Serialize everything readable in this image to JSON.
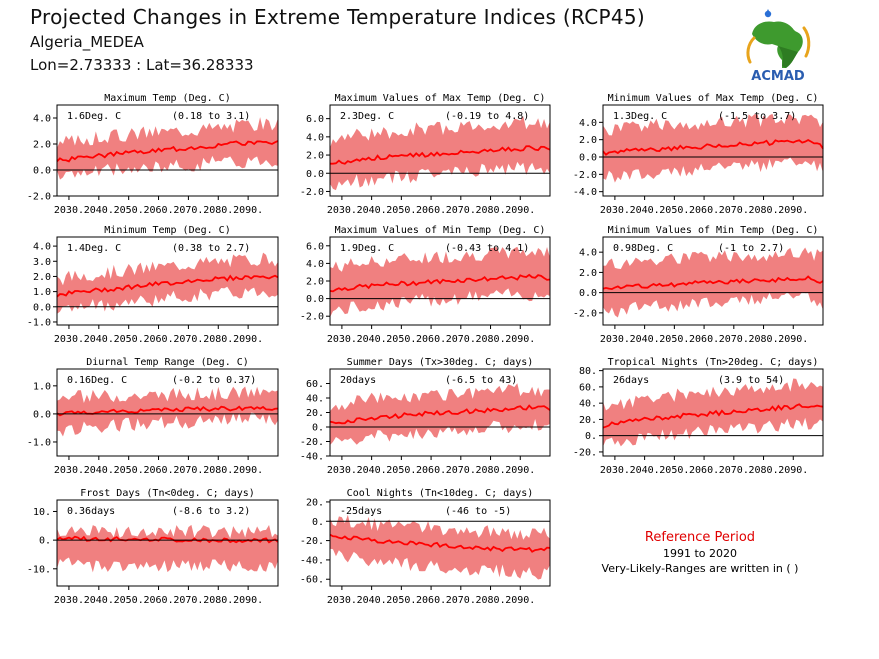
{
  "header": {
    "title": "Projected Changes in Extreme Temperature Indices (RCP45)",
    "region": "Algeria_MEDEA",
    "coords": "Lon=2.73333 : Lat=36.28333"
  },
  "logo": {
    "text": "ACMAD",
    "icon": "africa-map-icon"
  },
  "reference": {
    "title": "Reference Period",
    "years": "1991 to 2020",
    "note": "Very-Likely-Ranges are written in ( )"
  },
  "colors": {
    "band": "#f08080",
    "line": "#ff0000",
    "zero": "#000000"
  },
  "chart_data": [
    {
      "type": "area",
      "title": "Maximum Temp (Deg. C)",
      "value_label": "1.6Deg. C",
      "range_label": "(0.18 to 3.1)",
      "ylim": [
        -2,
        5
      ],
      "yticks": [
        "-2.0",
        "0.0",
        "2.0",
        "4.0"
      ],
      "ytick_values": [
        -2,
        0,
        2,
        4
      ],
      "xticks": [
        "2030.",
        "2040.",
        "2050.",
        "2060.",
        "2070.",
        "2080.",
        "2090."
      ],
      "xlim": [
        2026,
        2100
      ],
      "x": [
        2026,
        2035,
        2045,
        2055,
        2065,
        2075,
        2085,
        2095,
        2100
      ],
      "series": [
        {
          "values": [
            0.7,
            1.0,
            1.2,
            1.4,
            1.6,
            1.8,
            2.0,
            2.2,
            2.1
          ]
        }
      ],
      "lower": [
        -0.5,
        -0.2,
        0.0,
        0.1,
        0.3,
        0.5,
        0.6,
        0.8,
        0.7
      ],
      "upper": [
        2.0,
        2.4,
        2.6,
        2.9,
        3.0,
        3.2,
        3.4,
        3.6,
        3.5
      ]
    },
    {
      "type": "area",
      "title": "Maximum Values of Max Temp (Deg. C)",
      "value_label": "2.3Deg. C",
      "range_label": "(-0.19 to 4.8)",
      "ylim": [
        -2.5,
        7.5
      ],
      "yticks": [
        "-2.0",
        "0.0",
        "2.0",
        "4.0",
        "6.0"
      ],
      "ytick_values": [
        -2,
        0,
        2,
        4,
        6
      ],
      "xticks": [
        "2030.",
        "2040.",
        "2050.",
        "2060.",
        "2070.",
        "2080.",
        "2090."
      ],
      "xlim": [
        2026,
        2100
      ],
      "x": [
        2026,
        2035,
        2045,
        2055,
        2065,
        2075,
        2085,
        2095,
        2100
      ],
      "series": [
        {
          "values": [
            1.0,
            1.5,
            1.8,
            2.0,
            2.2,
            2.4,
            2.6,
            2.8,
            2.6
          ]
        }
      ],
      "lower": [
        -1.5,
        -0.8,
        -0.5,
        -0.3,
        0.0,
        0.2,
        0.4,
        0.6,
        0.4
      ],
      "upper": [
        3.5,
        4.2,
        4.5,
        4.8,
        5.0,
        5.2,
        5.4,
        5.6,
        5.3
      ]
    },
    {
      "type": "area",
      "title": "Minimum Values of Max Temp (Deg. C)",
      "value_label": "1.3Deg. C",
      "range_label": "(-1.5 to 3.7)",
      "ylim": [
        -4.5,
        6
      ],
      "yticks": [
        "-4.0",
        "-2.0",
        "0.0",
        "2.0",
        "4.0"
      ],
      "ytick_values": [
        -4,
        -2,
        0,
        2,
        4
      ],
      "xticks": [
        "2030.",
        "2040.",
        "2050.",
        "2060.",
        "2070.",
        "2080.",
        "2090."
      ],
      "xlim": [
        2026,
        2100
      ],
      "x": [
        2026,
        2035,
        2045,
        2055,
        2065,
        2075,
        2085,
        2095,
        2100
      ],
      "series": [
        {
          "values": [
            0.5,
            0.7,
            0.9,
            1.1,
            1.3,
            1.5,
            1.7,
            1.8,
            1.2
          ]
        }
      ],
      "lower": [
        -2.5,
        -2.0,
        -1.8,
        -1.5,
        -1.2,
        -1.0,
        -0.8,
        -0.6,
        -1.5
      ],
      "upper": [
        3.0,
        3.4,
        3.7,
        3.9,
        4.0,
        4.2,
        4.3,
        4.5,
        4.0
      ]
    },
    {
      "type": "area",
      "title": "Minimum Temp (Deg. C)",
      "value_label": "1.4Deg. C",
      "range_label": "(0.38 to 2.7)",
      "ylim": [
        -1.2,
        4.6
      ],
      "yticks": [
        "-1.0",
        "0.0",
        "1.0",
        "2.0",
        "3.0",
        "4.0"
      ],
      "ytick_values": [
        -1,
        0,
        1,
        2,
        3,
        4
      ],
      "xticks": [
        "2030.",
        "2040.",
        "2050.",
        "2060.",
        "2070.",
        "2080.",
        "2090."
      ],
      "xlim": [
        2026,
        2100
      ],
      "x": [
        2026,
        2035,
        2045,
        2055,
        2065,
        2075,
        2085,
        2095,
        2100
      ],
      "series": [
        {
          "values": [
            0.8,
            1.0,
            1.2,
            1.4,
            1.6,
            1.8,
            1.9,
            2.0,
            1.9
          ]
        }
      ],
      "lower": [
        -0.3,
        0.0,
        0.2,
        0.4,
        0.6,
        0.8,
        0.9,
        1.0,
        0.9
      ],
      "upper": [
        1.8,
        2.1,
        2.3,
        2.5,
        2.7,
        2.9,
        3.0,
        3.2,
        3.1
      ]
    },
    {
      "type": "area",
      "title": "Maximum Values of Min Temp (Deg. C)",
      "value_label": "1.9Deg. C",
      "range_label": "(-0.43 to 4.1)",
      "ylim": [
        -3,
        7
      ],
      "yticks": [
        "-2.0",
        "0.0",
        "2.0",
        "4.0",
        "6.0"
      ],
      "ytick_values": [
        -2,
        0,
        2,
        4,
        6
      ],
      "xticks": [
        "2030.",
        "2040.",
        "2050.",
        "2060.",
        "2070.",
        "2080.",
        "2090."
      ],
      "xlim": [
        2026,
        2100
      ],
      "x": [
        2026,
        2035,
        2045,
        2055,
        2065,
        2075,
        2085,
        2095,
        2100
      ],
      "series": [
        {
          "values": [
            1.0,
            1.3,
            1.6,
            1.8,
            2.0,
            2.2,
            2.3,
            2.5,
            2.3
          ]
        }
      ],
      "lower": [
        -1.5,
        -1.0,
        -0.6,
        -0.3,
        0.0,
        0.2,
        0.4,
        0.5,
        0.3
      ],
      "upper": [
        3.5,
        4.0,
        4.3,
        4.6,
        4.8,
        5.0,
        5.2,
        5.4,
        5.2
      ]
    },
    {
      "type": "area",
      "title": "Minimum Values of Min Temp (Deg. C)",
      "value_label": "0.98Deg. C",
      "range_label": "(-1 to 2.7)",
      "ylim": [
        -3.2,
        5.5
      ],
      "yticks": [
        "-2.0",
        "0.0",
        "2.0",
        "4.0"
      ],
      "ytick_values": [
        -2,
        0,
        2,
        4
      ],
      "xticks": [
        "2030.",
        "2040.",
        "2050.",
        "2060.",
        "2070.",
        "2080.",
        "2090."
      ],
      "xlim": [
        2026,
        2100
      ],
      "x": [
        2026,
        2035,
        2045,
        2055,
        2065,
        2075,
        2085,
        2095,
        2100
      ],
      "series": [
        {
          "values": [
            0.4,
            0.6,
            0.7,
            0.9,
            1.0,
            1.2,
            1.3,
            1.4,
            1.0
          ]
        }
      ],
      "lower": [
        -2.0,
        -1.6,
        -1.3,
        -1.1,
        -0.9,
        -0.7,
        -0.5,
        -0.4,
        -1.8
      ],
      "upper": [
        2.8,
        3.0,
        3.2,
        3.4,
        3.5,
        3.6,
        3.8,
        3.9,
        3.5
      ]
    },
    {
      "type": "area",
      "title": "Diurnal Temp Range (Deg. C)",
      "value_label": "0.16Deg. C",
      "range_label": "(-0.2 to 0.37)",
      "ylim": [
        -1.5,
        1.6
      ],
      "yticks": [
        "-1.0",
        "0.0",
        "1.0"
      ],
      "ytick_values": [
        -1,
        0,
        1
      ],
      "xticks": [
        "2030.",
        "2040.",
        "2050.",
        "2060.",
        "2070.",
        "2080.",
        "2090."
      ],
      "xlim": [
        2026,
        2100
      ],
      "x": [
        2026,
        2035,
        2045,
        2055,
        2065,
        2075,
        2085,
        2095,
        2100
      ],
      "series": [
        {
          "values": [
            0.0,
            0.05,
            0.1,
            0.12,
            0.15,
            0.17,
            0.2,
            0.22,
            0.2
          ]
        }
      ],
      "lower": [
        -0.7,
        -0.5,
        -0.4,
        -0.35,
        -0.3,
        -0.25,
        -0.2,
        -0.2,
        -0.3
      ],
      "upper": [
        0.6,
        0.6,
        0.65,
        0.65,
        0.7,
        0.7,
        0.75,
        0.75,
        0.7
      ]
    },
    {
      "type": "area",
      "title": "Summer Days (Tx>30deg. C; days)",
      "value_label": "20days",
      "range_label": "(-6.5 to 43)",
      "ylim": [
        -40,
        80
      ],
      "yticks": [
        "-40.",
        "-20.",
        "0.",
        "20.",
        "40.",
        "60."
      ],
      "ytick_values": [
        -40,
        -20,
        0,
        20,
        40,
        60
      ],
      "xticks": [
        "2030.",
        "2040.",
        "2050.",
        "2060.",
        "2070.",
        "2080.",
        "2090."
      ],
      "xlim": [
        2026,
        2100
      ],
      "x": [
        2026,
        2035,
        2045,
        2055,
        2065,
        2075,
        2085,
        2095,
        2100
      ],
      "series": [
        {
          "values": [
            5,
            10,
            14,
            18,
            20,
            22,
            25,
            27,
            26
          ]
        }
      ],
      "lower": [
        -25,
        -18,
        -12,
        -8,
        -5,
        -2,
        0,
        2,
        0
      ],
      "upper": [
        30,
        36,
        40,
        44,
        46,
        48,
        50,
        52,
        50
      ]
    },
    {
      "type": "area",
      "title": "Tropical Nights (Tn>20deg. C; days)",
      "value_label": "26days",
      "range_label": "(3.9 to 54)",
      "ylim": [
        -25,
        82
      ],
      "yticks": [
        "-20.",
        "0.",
        "20.",
        "40.",
        "60.",
        "80."
      ],
      "ytick_values": [
        -20,
        0,
        20,
        40,
        60,
        80
      ],
      "xticks": [
        "2030.",
        "2040.",
        "2050.",
        "2060.",
        "2070.",
        "2080.",
        "2090."
      ],
      "xlim": [
        2026,
        2100
      ],
      "x": [
        2026,
        2035,
        2045,
        2055,
        2065,
        2075,
        2085,
        2095,
        2100
      ],
      "series": [
        {
          "values": [
            12,
            18,
            22,
            25,
            28,
            31,
            34,
            37,
            35
          ]
        }
      ],
      "lower": [
        -10,
        -5,
        0,
        3,
        6,
        9,
        12,
        15,
        12
      ],
      "upper": [
        35,
        42,
        47,
        52,
        55,
        58,
        61,
        64,
        62
      ]
    },
    {
      "type": "area",
      "title": "Frost Days (Tn<0deg. C; days)",
      "value_label": "0.36days",
      "range_label": "(-8.6 to 3.2)",
      "ylim": [
        -16,
        14
      ],
      "yticks": [
        "-10.",
        "0.",
        "10."
      ],
      "ytick_values": [
        -10,
        0,
        10
      ],
      "xticks": [
        "2030.",
        "2040.",
        "2050.",
        "2060.",
        "2070.",
        "2080.",
        "2090."
      ],
      "xlim": [
        2026,
        2100
      ],
      "x": [
        2026,
        2035,
        2045,
        2055,
        2065,
        2075,
        2085,
        2095,
        2100
      ],
      "series": [
        {
          "values": [
            0.5,
            0.5,
            0.4,
            0.3,
            0.2,
            0.1,
            0.0,
            -0.1,
            -0.2
          ]
        }
      ],
      "lower": [
        -8,
        -9,
        -9,
        -9,
        -9,
        -9,
        -9,
        -9,
        -9
      ],
      "upper": [
        3,
        3,
        3,
        3,
        3,
        3,
        3,
        3,
        3
      ]
    },
    {
      "type": "area",
      "title": "Cool Nights (Tn<10deg. C; days)",
      "value_label": "-25days",
      "range_label": "(-46 to -5)",
      "ylim": [
        -67,
        22
      ],
      "yticks": [
        "-60.",
        "-40.",
        "-20.",
        "0.",
        "20."
      ],
      "ytick_values": [
        -60,
        -40,
        -20,
        0,
        20
      ],
      "xticks": [
        "2030.",
        "2040.",
        "2050.",
        "2060.",
        "2070.",
        "2080.",
        "2090."
      ],
      "xlim": [
        2026,
        2100
      ],
      "x": [
        2026,
        2035,
        2045,
        2055,
        2065,
        2075,
        2085,
        2095,
        2100
      ],
      "series": [
        {
          "values": [
            -14,
            -18,
            -21,
            -23,
            -25,
            -27,
            -29,
            -30,
            -29
          ]
        }
      ],
      "lower": [
        -34,
        -38,
        -42,
        -45,
        -48,
        -50,
        -52,
        -54,
        -52
      ],
      "upper": [
        2,
        -1,
        -4,
        -6,
        -8,
        -10,
        -12,
        -13,
        -11
      ]
    }
  ]
}
